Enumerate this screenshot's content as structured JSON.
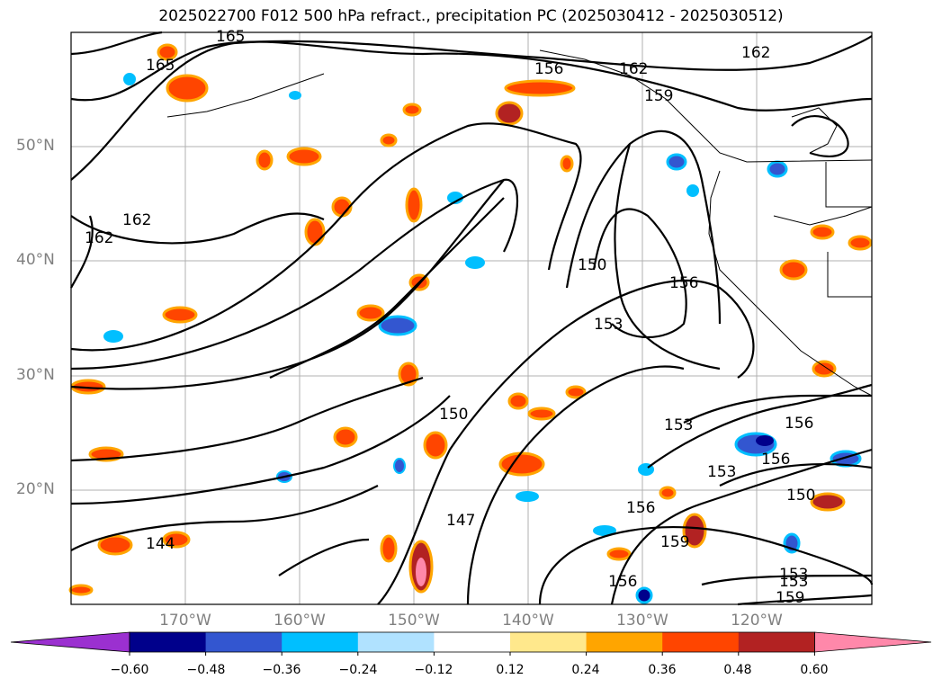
{
  "title": "2025022700 F012 500 hPa refract., precipitation PC (2025030412 - 2025030512)",
  "map": {
    "projection": "lat-lon",
    "lon_range": [
      "175°W",
      "115°W"
    ],
    "lat_range": [
      "10°N",
      "60°N"
    ],
    "lat_labels": [
      "50°N",
      "40°N",
      "30°N",
      "20°N"
    ],
    "lon_labels": [
      "170°W",
      "160°W",
      "150°W",
      "140°W",
      "130°W",
      "120°W"
    ],
    "contour_labels": [
      "165",
      "165",
      "162",
      "162",
      "162",
      "162",
      "159",
      "156",
      "156",
      "153",
      "153",
      "150",
      "150",
      "147",
      "144",
      "153",
      "156",
      "153",
      "156",
      "156",
      "159",
      "150",
      "153",
      "159",
      "156"
    ]
  },
  "colorbar": {
    "ticks": [
      "−0.60",
      "−0.48",
      "−0.36",
      "−0.24",
      "−0.12",
      "0.12",
      "0.24",
      "0.36",
      "0.48",
      "0.60"
    ],
    "colors": [
      "#9b30d0",
      "#00008b",
      "#3356d0",
      "#00bfff",
      "#b0e2ff",
      "#ffffff",
      "#ffe88c",
      "#ffa500",
      "#ff4500",
      "#b22222",
      "#ff88aa"
    ]
  }
}
